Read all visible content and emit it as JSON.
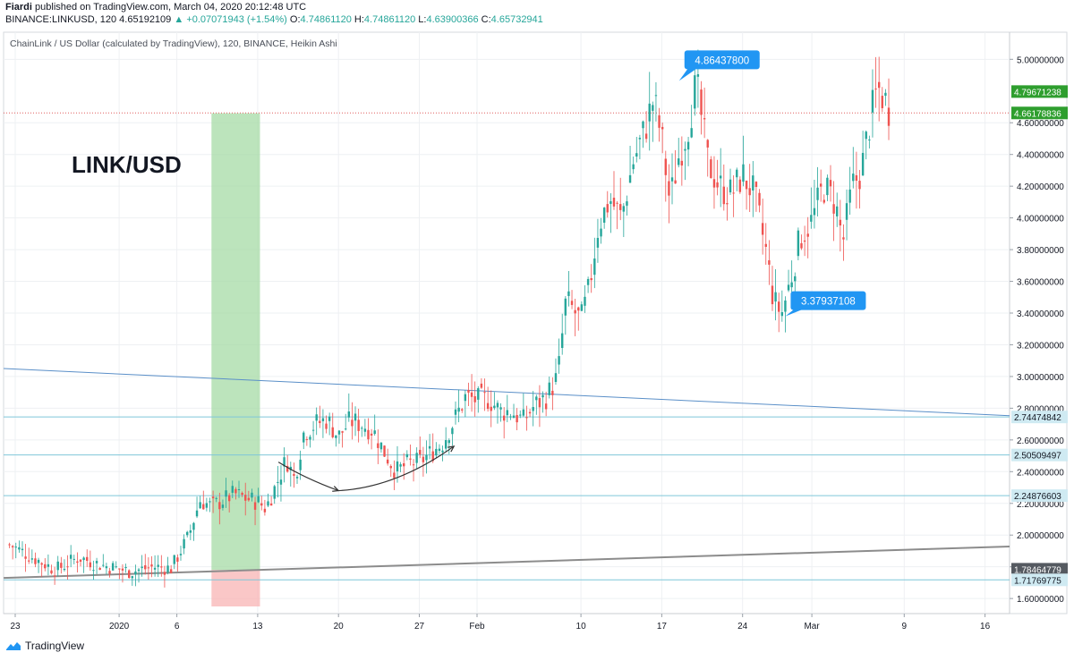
{
  "header": {
    "publisher": "Fiardi",
    "published_text": "published on TradingView.com, March 04, 2020 20:12:48 UTC",
    "symbol": "BINANCE:LINKUSD, 120",
    "last": "4.65192109",
    "change_arrow": "▲",
    "change": "+0.07071943 (+1.54%)",
    "o_label": "O:",
    "o": "4.74861120",
    "h_label": "H:",
    "h": "4.74861120",
    "l_label": "L:",
    "l": "4.63900366",
    "c_label": "C:",
    "c": "4.65732941"
  },
  "footer": {
    "brand": "TradingView"
  },
  "colors": {
    "up": "#26a69a",
    "down": "#ef5350",
    "blue_line": "#5a8fc8",
    "grey_line": "#8c8c8c",
    "callout": "#2196f3",
    "price_tag": "#2e9e2e",
    "h_level": "#7fc7d9",
    "green_zone": "#a5dba5",
    "red_zone": "#f8b4b4",
    "current_price_line": "#e05c5c"
  },
  "chart_data": {
    "type": "candlestick",
    "style": "Heikin Ashi",
    "legend_title": "ChainLink / US Dollar (calculated by TradingView), 120, BINANCE, Heikin Ashi",
    "watermark": "LINK/USD",
    "x_ticks": [
      "23",
      "2020",
      "6",
      "13",
      "20",
      "27",
      "Feb",
      "10",
      "17",
      "24",
      "Mar",
      "9",
      "16"
    ],
    "x_tick_days": [
      -9,
      0,
      5,
      12,
      19,
      26,
      31,
      40,
      47,
      54,
      60,
      68,
      75
    ],
    "y_ticks": [
      "1.60000000",
      "1.80000000",
      "2.00000000",
      "2.20000000",
      "2.40000000",
      "2.60000000",
      "2.80000000",
      "3.00000000",
      "3.20000000",
      "3.40000000",
      "3.60000000",
      "3.80000000",
      "4.00000000",
      "4.20000000",
      "4.40000000",
      "4.60000000",
      "5.00000000"
    ],
    "ylim": [
      1.55,
      5.1
    ],
    "grid": true,
    "trend_path": [
      [
        -9.5,
        1.94
      ],
      [
        -7.5,
        1.86
      ],
      [
        -5.5,
        1.78
      ],
      [
        -3.5,
        1.86
      ],
      [
        -1.5,
        1.81
      ],
      [
        1,
        1.77
      ],
      [
        3,
        1.8
      ],
      [
        4.5,
        1.79
      ],
      [
        6,
        1.99
      ],
      [
        7,
        2.22
      ],
      [
        8,
        2.18
      ],
      [
        9,
        2.22
      ],
      [
        10,
        2.26
      ],
      [
        11,
        2.23
      ],
      [
        12,
        2.21
      ],
      [
        12.7,
        2.17
      ],
      [
        13.5,
        2.3
      ],
      [
        14.5,
        2.48
      ],
      [
        15.2,
        2.35
      ],
      [
        16,
        2.65
      ],
      [
        17,
        2.7
      ],
      [
        18,
        2.73
      ],
      [
        19,
        2.62
      ],
      [
        20,
        2.72
      ],
      [
        21,
        2.7
      ],
      [
        22,
        2.66
      ],
      [
        23,
        2.52
      ],
      [
        24,
        2.4
      ],
      [
        25,
        2.45
      ],
      [
        26,
        2.46
      ],
      [
        27,
        2.52
      ],
      [
        28,
        2.58
      ],
      [
        29,
        2.72
      ],
      [
        30,
        2.87
      ],
      [
        31,
        2.85
      ],
      [
        32,
        2.86
      ],
      [
        33,
        2.78
      ],
      [
        34,
        2.78
      ],
      [
        35,
        2.72
      ],
      [
        36,
        2.82
      ],
      [
        37,
        2.87
      ],
      [
        38,
        3.0
      ],
      [
        38.7,
        3.48
      ],
      [
        40,
        3.35
      ],
      [
        40.7,
        3.55
      ],
      [
        41.5,
        3.95
      ],
      [
        42.5,
        4.12
      ],
      [
        43.5,
        4.0
      ],
      [
        44.5,
        4.35
      ],
      [
        45.5,
        4.55
      ],
      [
        46.3,
        4.75
      ],
      [
        47,
        4.5
      ],
      [
        47.7,
        4.1
      ],
      [
        48.5,
        4.4
      ],
      [
        49.2,
        4.55
      ],
      [
        50,
        4.85
      ],
      [
        51,
        4.35
      ],
      [
        52,
        4.2
      ],
      [
        53,
        4.15
      ],
      [
        54,
        4.27
      ],
      [
        55,
        4.15
      ],
      [
        56,
        3.8
      ],
      [
        56.7,
        3.47
      ],
      [
        57.4,
        3.4
      ],
      [
        58.2,
        3.62
      ],
      [
        59,
        3.88
      ],
      [
        60,
        3.98
      ],
      [
        61,
        4.2
      ],
      [
        62,
        4.1
      ],
      [
        62.7,
        3.85
      ],
      [
        63.5,
        4.2
      ],
      [
        64.3,
        4.3
      ],
      [
        65,
        4.6
      ],
      [
        65.7,
        4.82
      ],
      [
        66.3,
        4.75
      ],
      [
        66.8,
        4.67
      ]
    ],
    "annotations": [
      {
        "text": "4.86437800",
        "x_day": 48.5,
        "y": 4.864378
      },
      {
        "text": "3.37937108",
        "x_day": 57.7,
        "y": 3.37937108
      }
    ],
    "price_tags": [
      {
        "text": "4.79671238",
        "y": 4.79671238,
        "kind": "green"
      },
      {
        "text": "4.66178836",
        "y": 4.66178836,
        "kind": "green"
      },
      {
        "text": "2.74474842",
        "y": 2.74474842,
        "kind": "level"
      },
      {
        "text": "2.50509497",
        "y": 2.50509497,
        "kind": "level"
      },
      {
        "text": "2.24876603",
        "y": 2.24876603,
        "kind": "level"
      },
      {
        "text": "1.78464779",
        "y": 1.78464779,
        "kind": "grey"
      },
      {
        "text": "1.71769775",
        "y": 1.71769775,
        "kind": "level"
      }
    ],
    "horizontal_levels": [
      2.74474842,
      2.50509497,
      2.24876603,
      1.71769775
    ],
    "current_price_line": 4.66178836,
    "trendlines": [
      {
        "name": "blue",
        "from": [
          -10,
          3.05
        ],
        "to": [
          78,
          2.75
        ]
      },
      {
        "name": "grey",
        "from": [
          -10,
          1.73
        ],
        "to": [
          78,
          1.93
        ]
      }
    ],
    "zones": [
      {
        "name": "green",
        "from_day": 8,
        "to_day": 12.2,
        "y_from": 1.78,
        "y_to": 4.66
      },
      {
        "name": "red",
        "from_day": 8,
        "to_day": 12.2,
        "y_from": 1.55,
        "y_to": 1.78
      }
    ],
    "arrows": [
      {
        "from": [
          13.8,
          2.46
        ],
        "ctrl": [
          16,
          2.36
        ],
        "to": [
          19,
          2.28
        ]
      },
      {
        "from": [
          19,
          2.28
        ],
        "ctrl": [
          24,
          2.3
        ],
        "to": [
          29,
          2.56
        ]
      }
    ]
  }
}
